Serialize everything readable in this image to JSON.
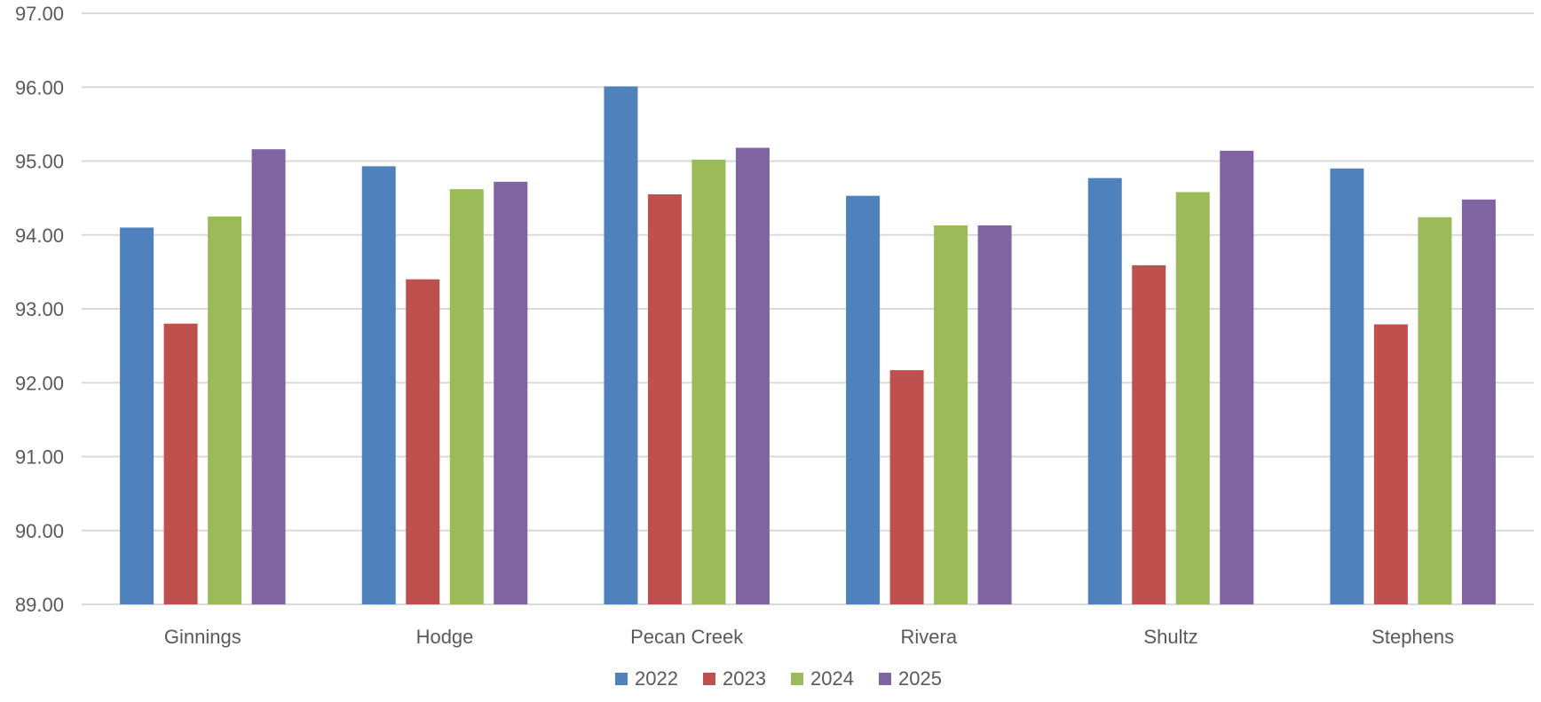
{
  "chart_data": {
    "type": "bar",
    "title": "",
    "xlabel": "",
    "ylabel": "",
    "ylim": [
      89,
      97
    ],
    "yticks": [
      "97.00",
      "96.00",
      "95.00",
      "94.00",
      "93.00",
      "92.00",
      "91.00",
      "90.00",
      "89.00"
    ],
    "categories": [
      "Ginnings",
      "Hodge",
      "Pecan Creek",
      "Rivera",
      "Shultz",
      "Stephens"
    ],
    "series": [
      {
        "name": "2022",
        "color": "#4f81bd",
        "values": [
          94.1,
          94.93,
          96.01,
          94.53,
          94.77,
          94.9
        ]
      },
      {
        "name": "2023",
        "color": "#c0504d",
        "values": [
          92.8,
          93.4,
          94.55,
          92.17,
          93.59,
          92.79
        ]
      },
      {
        "name": "2024",
        "color": "#9bbb59",
        "values": [
          94.25,
          94.62,
          95.02,
          94.13,
          94.58,
          94.24
        ]
      },
      {
        "name": "2025",
        "color": "#8064a2",
        "values": [
          95.16,
          94.72,
          95.18,
          94.13,
          95.14,
          94.48
        ]
      }
    ],
    "grid": true,
    "legend": "bottom"
  }
}
